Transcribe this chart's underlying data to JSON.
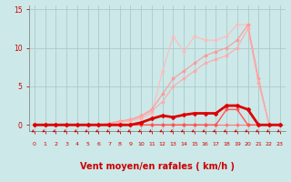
{
  "background_color": "#cce8e8",
  "grid_color": "#aacccc",
  "axis_color": "#888888",
  "xlabel": "Vent moyen/en rafales ( km/h )",
  "xlabel_color": "#cc0000",
  "xlabel_fontsize": 7,
  "ytick_color": "#cc0000",
  "xtick_color": "#cc0000",
  "xlim": [
    -0.5,
    23.5
  ],
  "ylim": [
    -0.8,
    15.5
  ],
  "yticks": [
    0,
    5,
    10,
    15
  ],
  "xticks": [
    0,
    1,
    2,
    3,
    4,
    5,
    6,
    7,
    8,
    9,
    10,
    11,
    12,
    13,
    14,
    15,
    16,
    17,
    18,
    19,
    20,
    21,
    22,
    23
  ],
  "lines": [
    {
      "x": [
        0,
        1,
        2,
        3,
        4,
        5,
        6,
        7,
        8,
        9,
        10,
        11,
        12,
        13,
        14,
        15,
        16,
        17,
        18,
        19,
        20,
        21,
        22,
        23
      ],
      "y": [
        0,
        0,
        0,
        0,
        0,
        0,
        0,
        0.1,
        0.3,
        0.5,
        0.8,
        1.5,
        7.0,
        11.5,
        9.5,
        11.5,
        11.0,
        11.0,
        11.5,
        13.0,
        13.0,
        5.5,
        0,
        0
      ],
      "color": "#ffbbbb",
      "lw": 0.8,
      "marker": "D",
      "markersize": 1.5,
      "zorder": 2
    },
    {
      "x": [
        0,
        1,
        2,
        3,
        4,
        5,
        6,
        7,
        8,
        9,
        10,
        11,
        12,
        13,
        14,
        15,
        16,
        17,
        18,
        19,
        20,
        21,
        22,
        23
      ],
      "y": [
        0,
        0,
        0,
        0,
        0,
        0,
        0,
        0.2,
        0.5,
        0.7,
        1.2,
        2.0,
        4.0,
        6.0,
        7.0,
        8.0,
        9.0,
        9.5,
        10.0,
        11.0,
        13.0,
        6.0,
        0,
        0
      ],
      "color": "#ff9999",
      "lw": 0.8,
      "marker": "D",
      "markersize": 1.5,
      "zorder": 2
    },
    {
      "x": [
        0,
        1,
        2,
        3,
        4,
        5,
        6,
        7,
        8,
        9,
        10,
        11,
        12,
        13,
        14,
        15,
        16,
        17,
        18,
        19,
        20,
        21,
        22,
        23
      ],
      "y": [
        0,
        0,
        0,
        0,
        0,
        0,
        0,
        0.15,
        0.4,
        0.6,
        1.0,
        1.8,
        3.0,
        5.0,
        6.0,
        7.0,
        8.0,
        8.5,
        9.0,
        10.0,
        12.5,
        5.5,
        0,
        0
      ],
      "color": "#ffaaaa",
      "lw": 0.8,
      "marker": "D",
      "markersize": 1.5,
      "zorder": 2
    },
    {
      "x": [
        0,
        1,
        2,
        3,
        4,
        5,
        6,
        7,
        8,
        9,
        10,
        11,
        12,
        13,
        14,
        15,
        16,
        17,
        18,
        19,
        20,
        21,
        22,
        23
      ],
      "y": [
        0,
        0,
        0,
        0,
        0,
        0,
        0,
        0,
        0,
        0,
        0.3,
        0.8,
        1.2,
        1.0,
        1.3,
        1.5,
        1.5,
        1.5,
        2.5,
        2.5,
        2.0,
        0,
        0,
        0
      ],
      "color": "#dd0000",
      "lw": 2.0,
      "marker": "D",
      "markersize": 2.0,
      "zorder": 5
    },
    {
      "x": [
        0,
        1,
        2,
        3,
        4,
        5,
        6,
        7,
        8,
        9,
        10,
        11,
        12,
        13,
        14,
        15,
        16,
        17,
        18,
        19,
        20,
        21,
        22,
        23
      ],
      "y": [
        0,
        0,
        0,
        0,
        0,
        0,
        0,
        0,
        0,
        0,
        0,
        0,
        0,
        0,
        0,
        0,
        0,
        0,
        2.0,
        2.0,
        0,
        0,
        0,
        0
      ],
      "color": "#ff5555",
      "lw": 1.0,
      "marker": "D",
      "markersize": 1.5,
      "zorder": 3
    },
    {
      "x": [
        0,
        1,
        2,
        3,
        4,
        5,
        6,
        7,
        8,
        9,
        10,
        11,
        12,
        13,
        14,
        15,
        16,
        17,
        18,
        19,
        20,
        21,
        22,
        23
      ],
      "y": [
        0,
        0,
        0,
        0,
        0,
        0,
        0,
        0,
        0,
        0,
        0,
        0,
        0,
        0,
        0,
        0,
        0,
        0,
        0,
        0,
        0,
        0,
        0,
        0
      ],
      "color": "#ff7777",
      "lw": 0.8,
      "marker": "D",
      "markersize": 1.5,
      "zorder": 2
    }
  ],
  "arrow_color": "#cc0000"
}
